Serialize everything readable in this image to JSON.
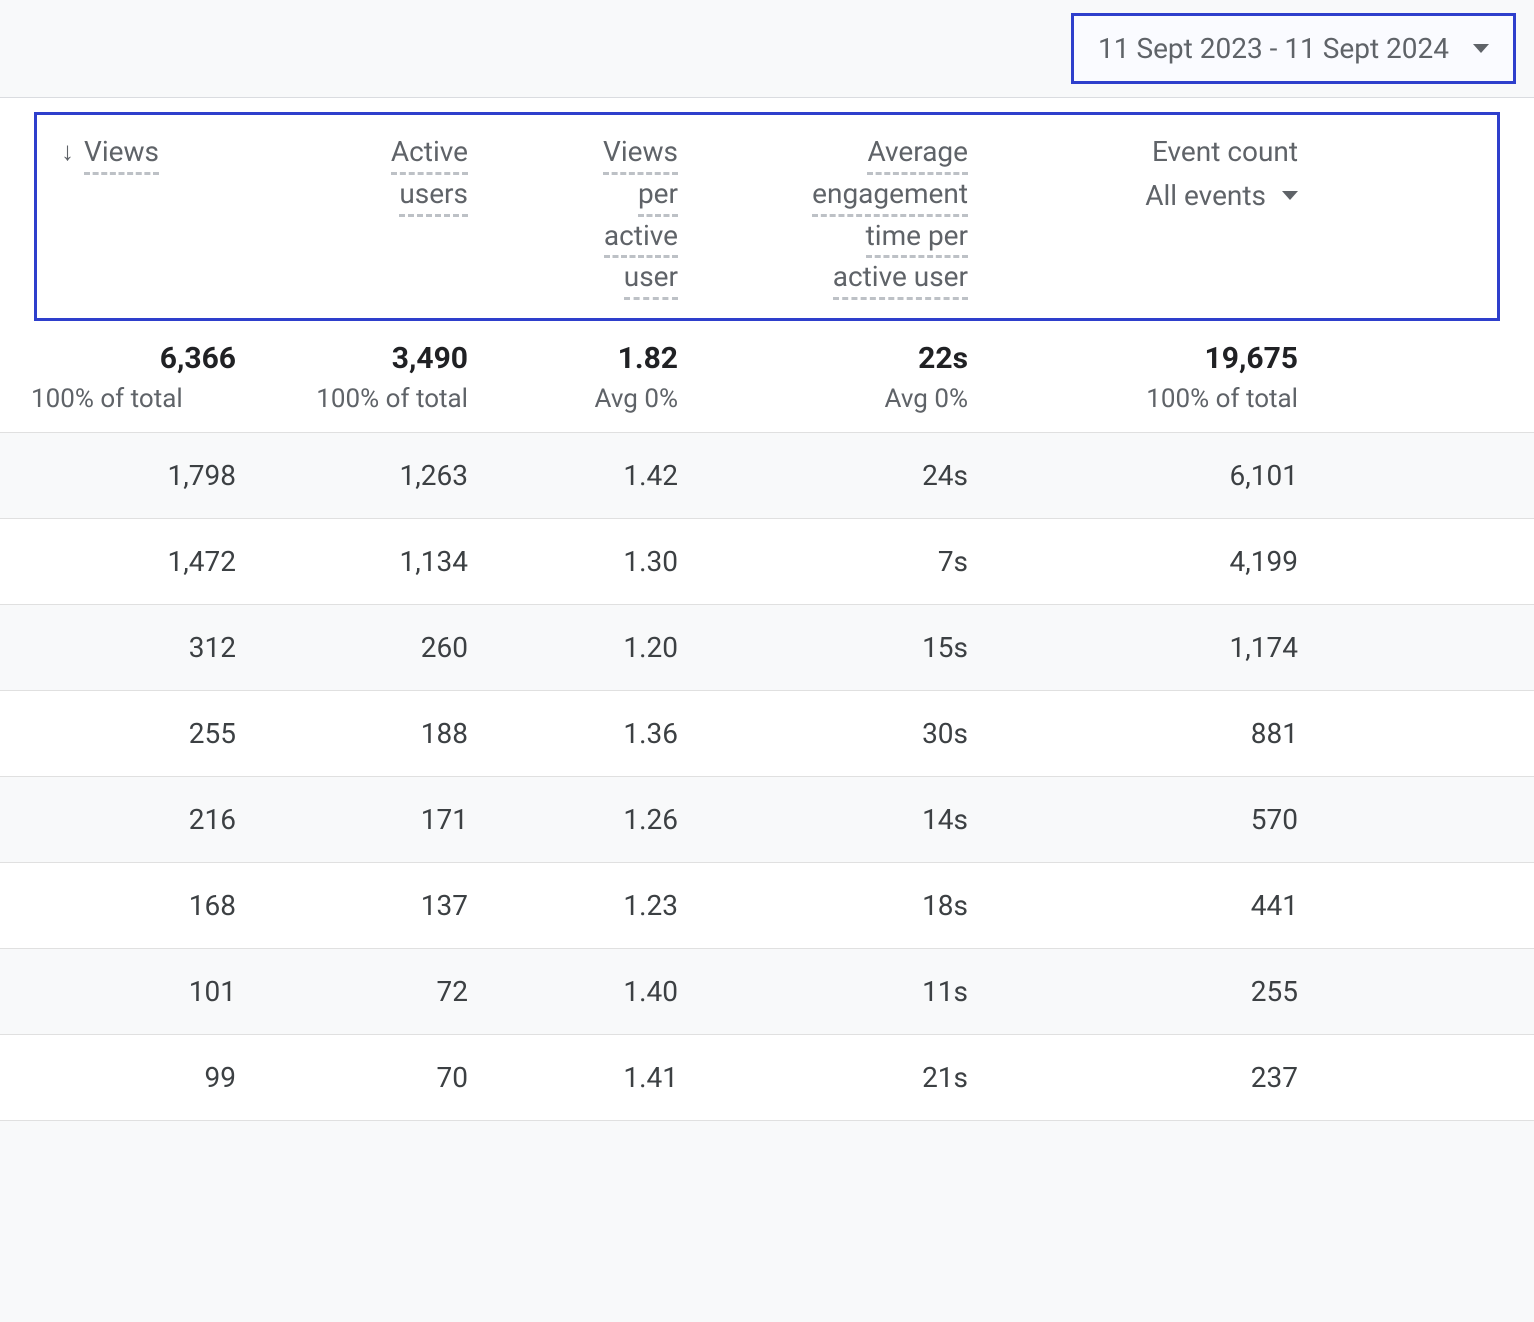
{
  "dateRange": {
    "label": "11 Sept 2023 - 11 Sept 2024"
  },
  "table": {
    "columns": {
      "views": {
        "label": "Views",
        "sorted": true
      },
      "activeUsers": {
        "line1": "Active",
        "line2": "users"
      },
      "viewsPerActiveUser": {
        "line1": "Views",
        "line2": "per",
        "line3": "active",
        "line4": "user"
      },
      "avgEngagement": {
        "line1": "Average",
        "line2": "engagement",
        "line3": "time per",
        "line4": "active user"
      },
      "eventCount": {
        "label": "Event count",
        "dropdown": "All events"
      }
    },
    "totals": {
      "views": {
        "value": "6,366",
        "sub": "100% of total"
      },
      "activeUsers": {
        "value": "3,490",
        "sub": "100% of total"
      },
      "viewsPerActiveUser": {
        "value": "1.82",
        "sub": "Avg 0%"
      },
      "avgEngagement": {
        "value": "22s",
        "sub": "Avg 0%"
      },
      "eventCount": {
        "value": "19,675",
        "sub": "100% of total"
      }
    },
    "rows": [
      {
        "views": "1,798",
        "activeUsers": "1,263",
        "viewsPerActiveUser": "1.42",
        "avgEngagement": "24s",
        "eventCount": "6,101"
      },
      {
        "views": "1,472",
        "activeUsers": "1,134",
        "viewsPerActiveUser": "1.30",
        "avgEngagement": "7s",
        "eventCount": "4,199"
      },
      {
        "views": "312",
        "activeUsers": "260",
        "viewsPerActiveUser": "1.20",
        "avgEngagement": "15s",
        "eventCount": "1,174"
      },
      {
        "views": "255",
        "activeUsers": "188",
        "viewsPerActiveUser": "1.36",
        "avgEngagement": "30s",
        "eventCount": "881"
      },
      {
        "views": "216",
        "activeUsers": "171",
        "viewsPerActiveUser": "1.26",
        "avgEngagement": "14s",
        "eventCount": "570"
      },
      {
        "views": "168",
        "activeUsers": "137",
        "viewsPerActiveUser": "1.23",
        "avgEngagement": "18s",
        "eventCount": "441"
      },
      {
        "views": "101",
        "activeUsers": "72",
        "viewsPerActiveUser": "1.40",
        "avgEngagement": "11s",
        "eventCount": "255"
      },
      {
        "views": "99",
        "activeUsers": "70",
        "viewsPerActiveUser": "1.41",
        "avgEngagement": "21s",
        "eventCount": "237"
      }
    ]
  }
}
